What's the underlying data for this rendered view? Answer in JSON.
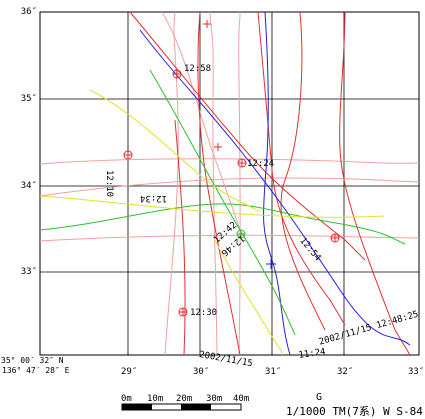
{
  "axis_y_labels": [
    "36″",
    "35″",
    "34″",
    "33″"
  ],
  "axis_x_labels": [
    "29″",
    "30″",
    "31″",
    "32″",
    "33″"
  ],
  "corner": {
    "lat": "35° 00′ 32″ N",
    "lon": "136° 47′ 28″ E"
  },
  "track_labels": {
    "t1258": "12:58",
    "t1224": "12:24",
    "t1210": "12:10",
    "t1234": "12:34",
    "t1242": "12:42",
    "t1246": "12:46",
    "t1254": "12:54",
    "t1230": "12:30",
    "date1": "2002/11/15",
    "date2": "11:24",
    "date3": "2002/11/15  12:48:25"
  },
  "scale_bar": {
    "ticks": [
      "0m",
      "10m",
      "20m",
      "30m",
      "40m"
    ]
  },
  "footer": {
    "letter": "G",
    "projection": "1/1000 TM(7系)  W S-84"
  },
  "colors": {
    "grid": "#000000",
    "track_red": "#e03030",
    "track_salmon": "#f0a0a0",
    "track_blue": "#2020e0",
    "track_green": "#30c030",
    "track_yellow": "#e0e030"
  }
}
